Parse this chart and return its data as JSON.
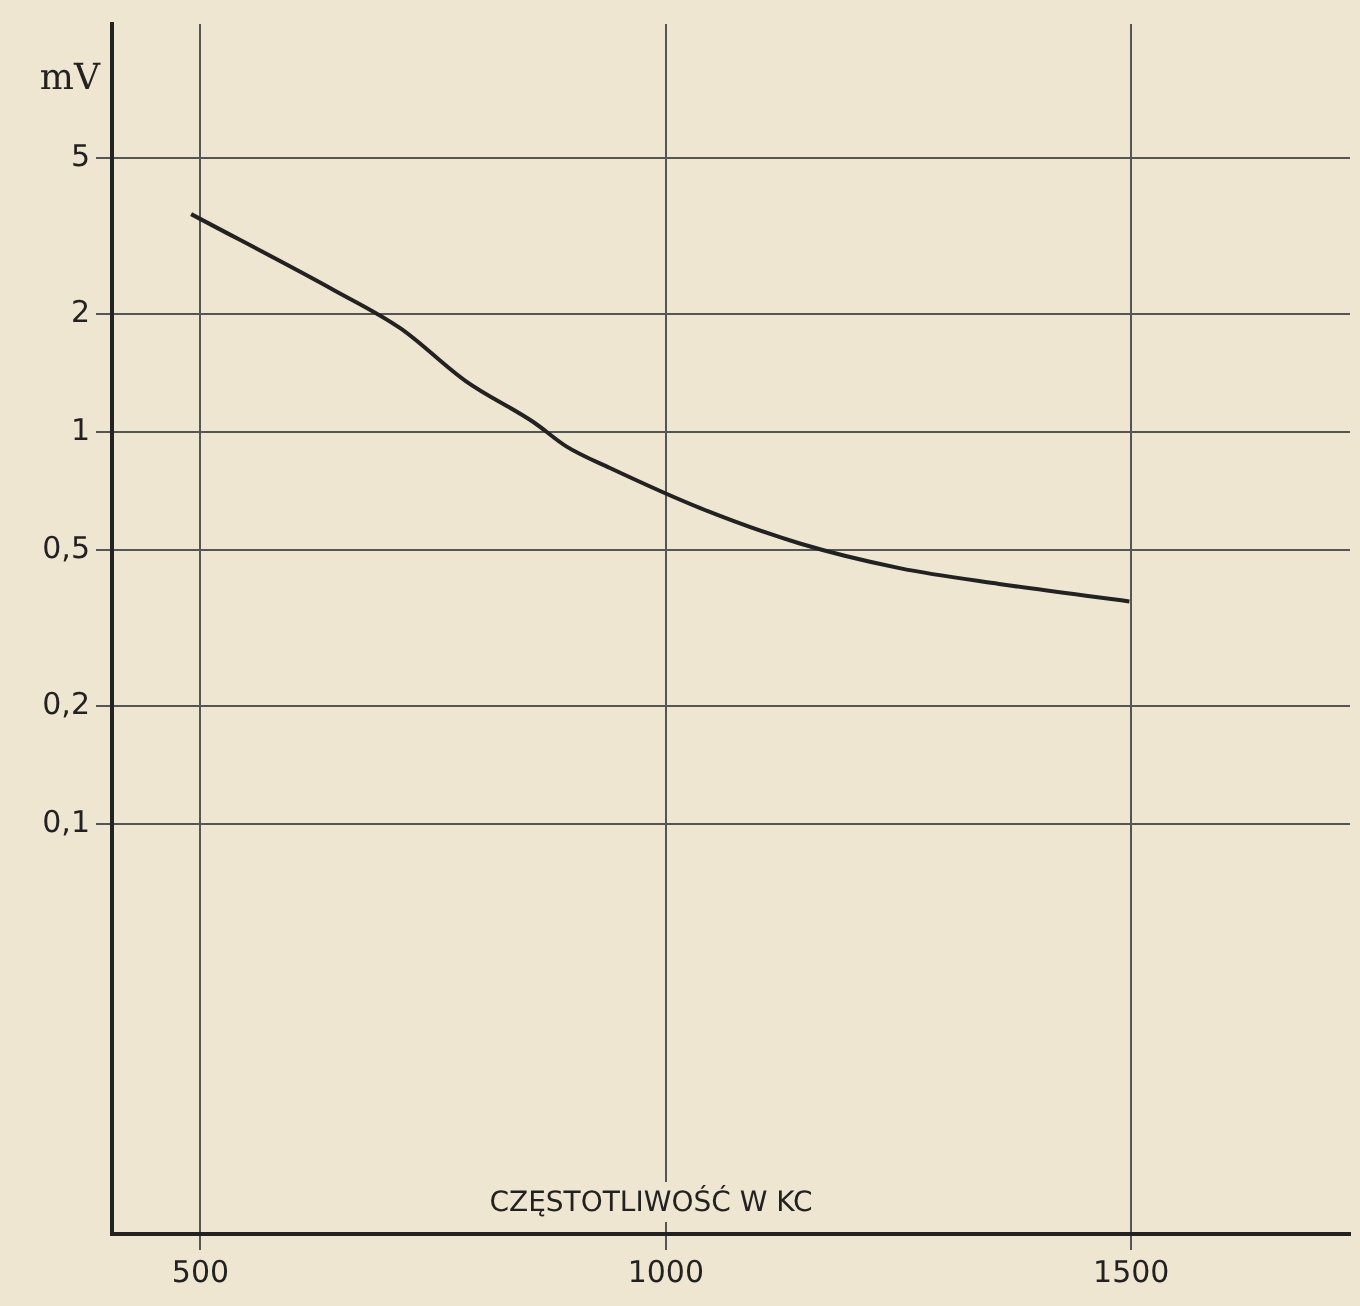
{
  "chart_data": {
    "type": "line",
    "xlabel": "CZĘSTOTLIWOŚĆ W KC",
    "ylabel": "mV",
    "log": "y",
    "grid": true,
    "legend": false,
    "marker": "none",
    "line_style": "solid",
    "xlim": [
      405,
      1735
    ],
    "xticks": [
      500,
      1000,
      1500
    ],
    "ylim": [
      0.009,
      11
    ],
    "yticks": [
      {
        "value": 0.1,
        "label": "0,1"
      },
      {
        "value": 0.2,
        "label": "0,2"
      },
      {
        "value": 0.5,
        "label": "0,5"
      },
      {
        "value": 1,
        "label": "1"
      },
      {
        "value": 2,
        "label": "2"
      },
      {
        "value": 5,
        "label": "5"
      }
    ],
    "x": [
      490,
      644,
      715,
      785,
      858,
      893,
      940,
      1037,
      1144,
      1251,
      1358,
      1498
    ],
    "series": [
      {
        "color": "#222222",
        "values": [
          3.6,
          2.3,
          1.84,
          1.35,
          1.06,
          0.92,
          0.81,
          0.64,
          0.52,
          0.45,
          0.41,
          0.37
        ]
      }
    ]
  }
}
